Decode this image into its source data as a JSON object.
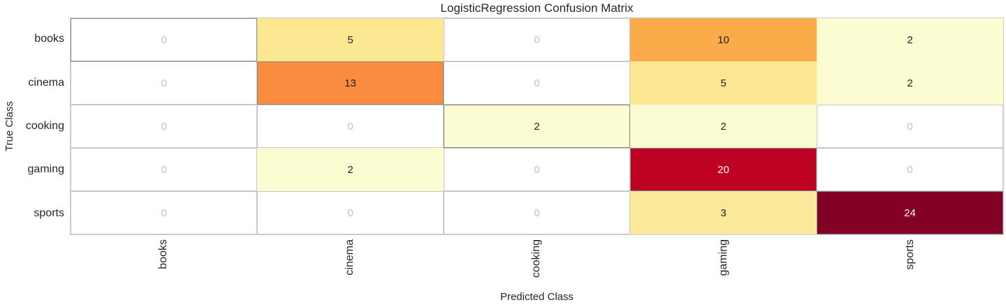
{
  "chart_data": {
    "type": "heatmap",
    "title": "LogisticRegression Confusion Matrix",
    "xlabel": "Predicted Class",
    "ylabel": "True Class",
    "classes": [
      "books",
      "cinema",
      "cooking",
      "gaming",
      "sports"
    ],
    "matrix": [
      [
        0,
        5,
        0,
        10,
        2
      ],
      [
        0,
        13,
        0,
        5,
        2
      ],
      [
        0,
        0,
        2,
        2,
        0
      ],
      [
        0,
        2,
        0,
        20,
        0
      ],
      [
        0,
        0,
        0,
        3,
        24
      ]
    ],
    "colormap": "YlOrRd",
    "legend": "none",
    "grid": "off",
    "value_colors": {
      "0": {
        "bg": "#FFFFFF",
        "fg": "#C1C1C1"
      },
      "2": {
        "bg": "#FCFCD3",
        "fg": "#1F1F1F"
      },
      "3": {
        "bg": "#FAE89B",
        "fg": "#1F1F1F"
      },
      "5": {
        "bg": "#FCE792",
        "fg": "#1F1F1F"
      },
      "10": {
        "bg": "#FBAC4A",
        "fg": "#1F1F1F"
      },
      "13": {
        "bg": "#F98C3F",
        "fg": "#1F1F1F"
      },
      "20": {
        "bg": "#BE0224",
        "fg": "#FAFAFA"
      },
      "24": {
        "bg": "#830125",
        "fg": "#FAFAFA"
      }
    }
  },
  "styles": {
    "spine_color": "#CFCFCF",
    "zero_cell_border": "#C7C7C7",
    "diagonal_cell_border": "#858585",
    "text_color": "#262626",
    "background": "#FFFFFF"
  }
}
